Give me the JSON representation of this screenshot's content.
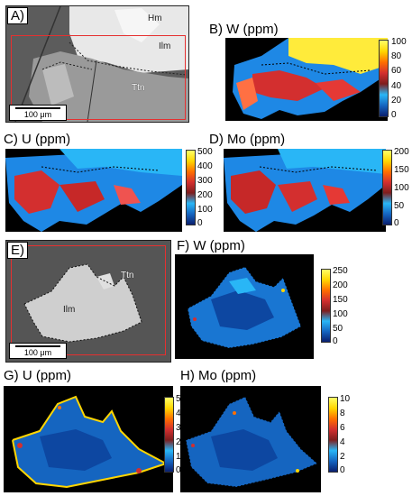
{
  "panels": {
    "A": {
      "label": "A)",
      "minerals": [
        "Hm",
        "Ilm",
        "Ttn"
      ],
      "scale": "100 μm"
    },
    "B": {
      "label": "B) W (ppm)",
      "ticks": [
        "100",
        "80",
        "60",
        "40",
        "20",
        "0"
      ]
    },
    "C": {
      "label": "C) U (ppm)",
      "ticks": [
        "500",
        "400",
        "300",
        "200",
        "100",
        "0"
      ]
    },
    "D": {
      "label": "D) Mo (ppm)",
      "ticks": [
        "200",
        "150",
        "100",
        "50",
        "0"
      ]
    },
    "E": {
      "label": "E)",
      "minerals": [
        "Ttn",
        "Ilm"
      ],
      "scale": "100 μm"
    },
    "F": {
      "label": "F) W (ppm)",
      "ticks": [
        "250",
        "200",
        "150",
        "100",
        "50",
        "0"
      ]
    },
    "G": {
      "label": "G) U (ppm)",
      "ticks": [
        "50",
        "40",
        "30",
        "20",
        "10",
        "0"
      ]
    },
    "H": {
      "label": "H) Mo (ppm)",
      "ticks": [
        "10",
        "8",
        "6",
        "4",
        "2",
        "0"
      ]
    }
  },
  "colormap": [
    "#0a1f6e",
    "#1565c0",
    "#29b6f6",
    "#4dd0e1",
    "#7e1e1e",
    "#d32f2f",
    "#ff6f00",
    "#ffd600",
    "#ffff66"
  ]
}
